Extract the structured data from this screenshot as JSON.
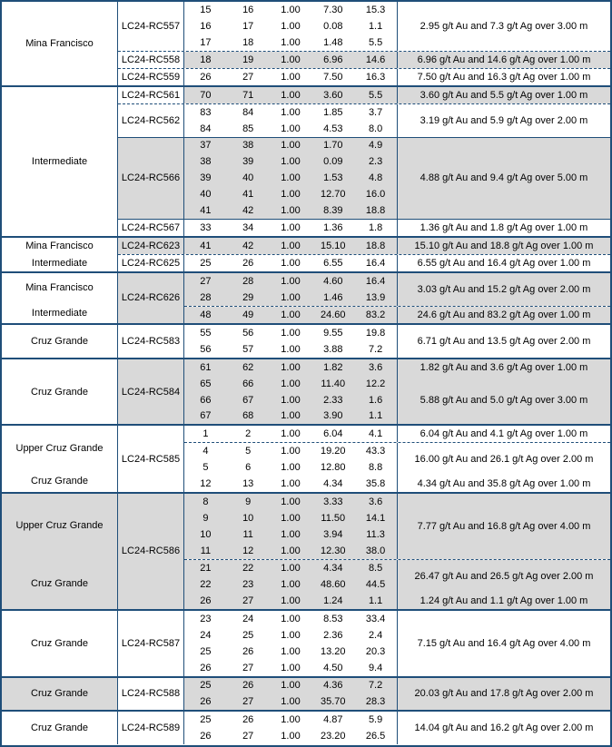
{
  "colors": {
    "table_border": "#1F4E79",
    "row_shade": "#D9D9D9"
  },
  "table": {
    "blocks": [
      {
        "zone_shaded": false,
        "zones": [
          {
            "label": "Mina Francisco",
            "span": 1
          }
        ],
        "holes": [
          {
            "id": "LC24-RC557",
            "sep": "none",
            "shaded": false,
            "groups": [
              {
                "sep": "none",
                "shaded": false,
                "rows": [
                  [
                    "15",
                    "16",
                    "1.00",
                    "7.30",
                    "15.3"
                  ],
                  [
                    "16",
                    "17",
                    "1.00",
                    "0.08",
                    "1.1"
                  ],
                  [
                    "17",
                    "18",
                    "1.00",
                    "1.48",
                    "5.5"
                  ]
                ],
                "summary": "2.95 g/t Au and 7.3 g/t Ag over 3.00 m"
              }
            ]
          },
          {
            "id": "LC24-RC558",
            "sep": "dashed",
            "shaded": false,
            "groups": [
              {
                "sep": "none",
                "shaded": true,
                "rows": [
                  [
                    "18",
                    "19",
                    "1.00",
                    "6.96",
                    "14.6"
                  ]
                ],
                "summary": "6.96 g/t Au and 14.6 g/t Ag over 1.00 m"
              }
            ]
          },
          {
            "id": "LC24-RC559",
            "sep": "dashed",
            "shaded": false,
            "groups": [
              {
                "sep": "none",
                "shaded": false,
                "rows": [
                  [
                    "26",
                    "27",
                    "1.00",
                    "7.50",
                    "16.3"
                  ]
                ],
                "summary": "7.50 g/t Au and 16.3 g/t Ag over 1.00 m"
              }
            ]
          }
        ]
      },
      {
        "zone_shaded": false,
        "zones": [
          {
            "label": "Intermediate",
            "span": 1
          }
        ],
        "holes": [
          {
            "id": "LC24-RC561",
            "sep": "none",
            "shaded": false,
            "groups": [
              {
                "sep": "none",
                "shaded": true,
                "rows": [
                  [
                    "70",
                    "71",
                    "1.00",
                    "3.60",
                    "5.5"
                  ]
                ],
                "summary": "3.60 g/t Au and 5.5 g/t Ag over 1.00 m"
              }
            ]
          },
          {
            "id": "LC24-RC562",
            "sep": "dashed",
            "shaded": false,
            "groups": [
              {
                "sep": "none",
                "shaded": false,
                "rows": [
                  [
                    "83",
                    "84",
                    "1.00",
                    "1.85",
                    "3.7"
                  ],
                  [
                    "84",
                    "85",
                    "1.00",
                    "4.53",
                    "8.0"
                  ]
                ],
                "summary": "3.19 g/t Au and 5.9 g/t Ag over 2.00 m"
              }
            ]
          },
          {
            "id": "LC24-RC566",
            "sep": "solid",
            "shaded": true,
            "groups": [
              {
                "sep": "none",
                "shaded": true,
                "rows": [
                  [
                    "37",
                    "38",
                    "1.00",
                    "1.70",
                    "4.9"
                  ],
                  [
                    "38",
                    "39",
                    "1.00",
                    "0.09",
                    "2.3"
                  ],
                  [
                    "39",
                    "40",
                    "1.00",
                    "1.53",
                    "4.8"
                  ],
                  [
                    "40",
                    "41",
                    "1.00",
                    "12.70",
                    "16.0"
                  ],
                  [
                    "41",
                    "42",
                    "1.00",
                    "8.39",
                    "18.8"
                  ]
                ],
                "summary": "4.88 g/t Au and 9.4 g/t Ag over 5.00 m"
              }
            ]
          },
          {
            "id": "LC24-RC567",
            "sep": "solid",
            "shaded": false,
            "groups": [
              {
                "sep": "none",
                "shaded": false,
                "rows": [
                  [
                    "33",
                    "34",
                    "1.00",
                    "1.36",
                    "1.8"
                  ]
                ],
                "summary": "1.36 g/t Au and 1.8 g/t Ag over 1.00 m"
              }
            ]
          }
        ]
      },
      {
        "zone_shaded": false,
        "zones": [
          {
            "label": "Mina Francisco",
            "span": 1
          },
          {
            "label": "Intermediate",
            "span": 1
          }
        ],
        "holes": [
          {
            "id": "LC24-RC623",
            "sep": "none",
            "shaded": true,
            "groups": [
              {
                "sep": "none",
                "shaded": true,
                "rows": [
                  [
                    "41",
                    "42",
                    "1.00",
                    "15.10",
                    "18.8"
                  ]
                ],
                "summary": "15.10 g/t Au and 18.8 g/t Ag over 1.00 m"
              }
            ]
          },
          {
            "id": "LC24-RC625",
            "sep": "dashed",
            "shaded": false,
            "groups": [
              {
                "sep": "none",
                "shaded": false,
                "rows": [
                  [
                    "25",
                    "26",
                    "1.00",
                    "6.55",
                    "16.4"
                  ]
                ],
                "summary": "6.55 g/t Au and 16.4 g/t Ag over 1.00 m"
              }
            ]
          }
        ]
      },
      {
        "zone_shaded": false,
        "zones": [
          {
            "label": "Mina Francisco",
            "span": 2
          },
          {
            "label": "Intermediate",
            "span": 1
          }
        ],
        "holes": [
          {
            "id": "LC24-RC626",
            "sep": "none",
            "shaded": true,
            "groups": [
              {
                "sep": "none",
                "shaded": true,
                "rows": [
                  [
                    "27",
                    "28",
                    "1.00",
                    "4.60",
                    "16.4"
                  ],
                  [
                    "28",
                    "29",
                    "1.00",
                    "1.46",
                    "13.9"
                  ]
                ],
                "summary": "3.03 g/t Au and 15.2 g/t Ag over 2.00 m"
              },
              {
                "sep": "dashed",
                "shaded": true,
                "rows": [
                  [
                    "48",
                    "49",
                    "1.00",
                    "24.60",
                    "83.2"
                  ]
                ],
                "summary": "24.6 g/t Au and 83.2 g/t Ag over 1.00 m"
              }
            ]
          }
        ]
      },
      {
        "zone_shaded": false,
        "zones": [
          {
            "label": "Cruz Grande",
            "span": 1
          }
        ],
        "holes": [
          {
            "id": "LC24-RC583",
            "sep": "none",
            "shaded": false,
            "groups": [
              {
                "sep": "none",
                "shaded": false,
                "rows": [
                  [
                    "55",
                    "56",
                    "1.00",
                    "9.55",
                    "19.8"
                  ],
                  [
                    "56",
                    "57",
                    "1.00",
                    "3.88",
                    "7.2"
                  ]
                ],
                "summary": "6.71 g/t Au and 13.5 g/t Ag over 2.00 m"
              }
            ]
          }
        ]
      },
      {
        "zone_shaded": false,
        "zones": [
          {
            "label": "Cruz Grande",
            "span": 1
          }
        ],
        "holes": [
          {
            "id": "LC24-RC584",
            "sep": "none",
            "shaded": true,
            "groups": [
              {
                "sep": "none",
                "shaded": true,
                "rows": [
                  [
                    "61",
                    "62",
                    "1.00",
                    "1.82",
                    "3.6"
                  ]
                ],
                "summary": "1.82 g/t Au and 3.6 g/t Ag over 1.00 m"
              },
              {
                "sep": "none",
                "shaded": true,
                "rows": [
                  [
                    "65",
                    "66",
                    "1.00",
                    "11.40",
                    "12.2"
                  ],
                  [
                    "66",
                    "67",
                    "1.00",
                    "2.33",
                    "1.6"
                  ],
                  [
                    "67",
                    "68",
                    "1.00",
                    "3.90",
                    "1.1"
                  ]
                ],
                "summary": "5.88 g/t Au and 5.0 g/t Ag over 3.00 m"
              }
            ]
          }
        ]
      },
      {
        "zone_shaded": false,
        "zones": [
          {
            "label": "Upper Cruz Grande",
            "span": 3
          },
          {
            "label": "Cruz Grande",
            "span": 1
          }
        ],
        "holes": [
          {
            "id": "LC24-RC585",
            "sep": "none",
            "shaded": false,
            "groups": [
              {
                "sep": "none",
                "shaded": false,
                "rows": [
                  [
                    "1",
                    "2",
                    "1.00",
                    "6.04",
                    "4.1"
                  ]
                ],
                "summary": "6.04 g/t Au and 4.1 g/t Ag over 1.00 m"
              },
              {
                "sep": "dashed",
                "shaded": false,
                "rows": [
                  [
                    "4",
                    "5",
                    "1.00",
                    "19.20",
                    "43.3"
                  ],
                  [
                    "5",
                    "6",
                    "1.00",
                    "12.80",
                    "8.8"
                  ]
                ],
                "summary": "16.00 g/t Au and 26.1 g/t Ag over 2.00 m"
              },
              {
                "sep": "none",
                "shaded": false,
                "rows": [
                  [
                    "12",
                    "13",
                    "1.00",
                    "4.34",
                    "35.8"
                  ]
                ],
                "summary": "4.34 g/t Au and 35.8 g/t Ag over 1.00 m"
              }
            ]
          }
        ]
      },
      {
        "zone_shaded": true,
        "zones": [
          {
            "label": "Upper Cruz Grande",
            "span": 4
          },
          {
            "label": "Cruz Grande",
            "span": 3
          }
        ],
        "holes": [
          {
            "id": "LC24-RC586",
            "sep": "none",
            "shaded": true,
            "groups": [
              {
                "sep": "none",
                "shaded": true,
                "rows": [
                  [
                    "8",
                    "9",
                    "1.00",
                    "3.33",
                    "3.6"
                  ],
                  [
                    "9",
                    "10",
                    "1.00",
                    "11.50",
                    "14.1"
                  ],
                  [
                    "10",
                    "11",
                    "1.00",
                    "3.94",
                    "11.3"
                  ],
                  [
                    "11",
                    "12",
                    "1.00",
                    "12.30",
                    "38.0"
                  ]
                ],
                "summary": "7.77 g/t Au and 16.8 g/t Ag over 4.00 m"
              },
              {
                "sep": "dashed",
                "shaded": true,
                "rows": [
                  [
                    "21",
                    "22",
                    "1.00",
                    "4.34",
                    "8.5"
                  ],
                  [
                    "22",
                    "23",
                    "1.00",
                    "48.60",
                    "44.5"
                  ]
                ],
                "summary": "26.47 g/t Au and 26.5 g/t Ag over 2.00 m"
              },
              {
                "sep": "none",
                "shaded": true,
                "rows": [
                  [
                    "26",
                    "27",
                    "1.00",
                    "1.24",
                    "1.1"
                  ]
                ],
                "summary": "1.24 g/t Au and 1.1 g/t Ag over 1.00 m"
              }
            ]
          }
        ]
      },
      {
        "zone_shaded": false,
        "zones": [
          {
            "label": "Cruz Grande",
            "span": 1
          }
        ],
        "holes": [
          {
            "id": "LC24-RC587",
            "sep": "none",
            "shaded": false,
            "groups": [
              {
                "sep": "none",
                "shaded": false,
                "rows": [
                  [
                    "23",
                    "24",
                    "1.00",
                    "8.53",
                    "33.4"
                  ],
                  [
                    "24",
                    "25",
                    "1.00",
                    "2.36",
                    "2.4"
                  ],
                  [
                    "25",
                    "26",
                    "1.00",
                    "13.20",
                    "20.3"
                  ],
                  [
                    "26",
                    "27",
                    "1.00",
                    "4.50",
                    "9.4"
                  ]
                ],
                "summary": "7.15 g/t Au and 16.4 g/t Ag over 4.00 m"
              }
            ]
          }
        ]
      },
      {
        "zone_shaded": true,
        "zones": [
          {
            "label": "Cruz Grande",
            "span": 1
          }
        ],
        "holes": [
          {
            "id": "LC24-RC588",
            "sep": "none",
            "shaded": false,
            "groups": [
              {
                "sep": "none",
                "shaded": true,
                "rows": [
                  [
                    "25",
                    "26",
                    "1.00",
                    "4.36",
                    "7.2"
                  ],
                  [
                    "26",
                    "27",
                    "1.00",
                    "35.70",
                    "28.3"
                  ]
                ],
                "summary": "20.03 g/t Au and 17.8 g/t Ag over 2.00 m"
              }
            ]
          }
        ]
      },
      {
        "zone_shaded": false,
        "zones": [
          {
            "label": "Cruz Grande",
            "span": 1
          }
        ],
        "holes": [
          {
            "id": "LC24-RC589",
            "sep": "none",
            "shaded": false,
            "groups": [
              {
                "sep": "none",
                "shaded": false,
                "rows": [
                  [
                    "25",
                    "26",
                    "1.00",
                    "4.87",
                    "5.9"
                  ],
                  [
                    "26",
                    "27",
                    "1.00",
                    "23.20",
                    "26.5"
                  ]
                ],
                "summary": "14.04 g/t Au and 16.2 g/t Ag over 2.00 m"
              }
            ]
          }
        ]
      }
    ]
  }
}
